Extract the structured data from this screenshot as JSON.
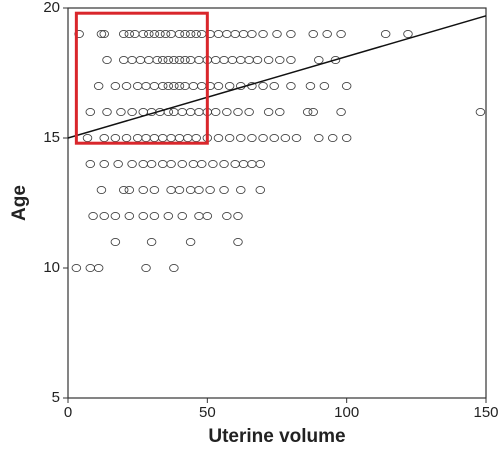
{
  "chart_data": {
    "type": "scatter",
    "x_label": "Uterine volume",
    "y_label": "Age",
    "xlim": [
      0,
      150
    ],
    "ylim": [
      5,
      20
    ],
    "xticks": [
      0,
      50,
      100,
      150
    ],
    "yticks": [
      5,
      10,
      15,
      20
    ],
    "marker_color": "#444444",
    "x": [
      4,
      12,
      13,
      20,
      22,
      24,
      27,
      29,
      31,
      33,
      35,
      37,
      40,
      42,
      44,
      46,
      48,
      51,
      54,
      57,
      60,
      63,
      66,
      70,
      75,
      80,
      88,
      93,
      98,
      114,
      122,
      14,
      20,
      23,
      26,
      29,
      32,
      34,
      36,
      38,
      40,
      42,
      44,
      47,
      50,
      53,
      56,
      59,
      62,
      65,
      68,
      72,
      76,
      80,
      90,
      96,
      11,
      17,
      21,
      25,
      28,
      31,
      34,
      36,
      38,
      40,
      42,
      45,
      48,
      51,
      54,
      58,
      62,
      66,
      70,
      74,
      80,
      87,
      92,
      100,
      8,
      14,
      19,
      23,
      27,
      30,
      33,
      36,
      38,
      41,
      44,
      47,
      50,
      53,
      57,
      61,
      65,
      72,
      76,
      86,
      88,
      98,
      148,
      7,
      13,
      17,
      21,
      25,
      28,
      31,
      34,
      37,
      40,
      43,
      46,
      50,
      54,
      58,
      62,
      66,
      70,
      74,
      78,
      82,
      90,
      95,
      100,
      8,
      13,
      18,
      23,
      27,
      30,
      34,
      37,
      41,
      45,
      48,
      52,
      56,
      60,
      63,
      66,
      69,
      12,
      20,
      22,
      27,
      31,
      37,
      40,
      44,
      47,
      51,
      56,
      62,
      69,
      9,
      13,
      17,
      22,
      27,
      31,
      36,
      41,
      47,
      50,
      57,
      61,
      17,
      30,
      44,
      61,
      3,
      8,
      11,
      28,
      38
    ],
    "y": [
      19,
      19,
      19,
      19,
      19,
      19,
      19,
      19,
      19,
      19,
      19,
      19,
      19,
      19,
      19,
      19,
      19,
      19,
      19,
      19,
      19,
      19,
      19,
      19,
      19,
      19,
      19,
      19,
      19,
      19,
      19,
      18,
      18,
      18,
      18,
      18,
      18,
      18,
      18,
      18,
      18,
      18,
      18,
      18,
      18,
      18,
      18,
      18,
      18,
      18,
      18,
      18,
      18,
      18,
      18,
      18,
      17,
      17,
      17,
      17,
      17,
      17,
      17,
      17,
      17,
      17,
      17,
      17,
      17,
      17,
      17,
      17,
      17,
      17,
      17,
      17,
      17,
      17,
      17,
      17,
      16,
      16,
      16,
      16,
      16,
      16,
      16,
      16,
      16,
      16,
      16,
      16,
      16,
      16,
      16,
      16,
      16,
      16,
      16,
      16,
      16,
      16,
      16,
      15,
      15,
      15,
      15,
      15,
      15,
      15,
      15,
      15,
      15,
      15,
      15,
      15,
      15,
      15,
      15,
      15,
      15,
      15,
      15,
      15,
      15,
      15,
      15,
      14,
      14,
      14,
      14,
      14,
      14,
      14,
      14,
      14,
      14,
      14,
      14,
      14,
      14,
      14,
      14,
      14,
      13,
      13,
      13,
      13,
      13,
      13,
      13,
      13,
      13,
      13,
      13,
      13,
      13,
      12,
      12,
      12,
      12,
      12,
      12,
      12,
      12,
      12,
      12,
      12,
      12,
      11,
      11,
      11,
      11,
      10,
      10,
      10,
      10,
      10
    ],
    "trendline": {
      "x": [
        0,
        150
      ],
      "y": [
        15,
        19.7
      ],
      "color": "#111111"
    },
    "highlight_box": {
      "xlim": [
        3,
        50
      ],
      "ylim": [
        14.8,
        19.8
      ],
      "color": "#d9262b"
    }
  }
}
